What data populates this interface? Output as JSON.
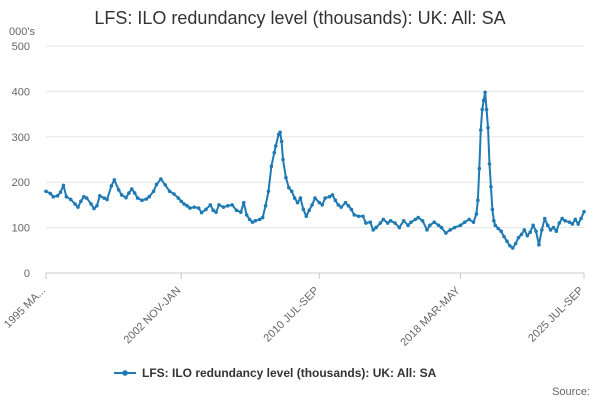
{
  "chart_data": {
    "type": "line",
    "title": "LFS: ILO redundancy level (thousands): UK: All: SA",
    "ylabel": "000's",
    "xlabel": "",
    "ylim": [
      0,
      500
    ],
    "yticks": [
      0,
      100,
      200,
      300,
      400,
      500
    ],
    "grid": true,
    "legend_position": "bottom",
    "source_label": "Source:",
    "xtick_labels": [
      "1995 MA...",
      "2002 NOV-JAN",
      "2010 JUL-SEP",
      "2018 MAR-MAY",
      "2025 JUL-SEP"
    ],
    "xtick_positions": [
      0,
      93,
      188,
      285,
      370
    ],
    "series": [
      {
        "name": "LFS: ILO redundancy level (thousands): UK: All: SA",
        "color": "#1f7ab4",
        "anchors": [
          [
            0,
            180
          ],
          [
            3,
            175
          ],
          [
            5,
            168
          ],
          [
            8,
            170
          ],
          [
            10,
            178
          ],
          [
            12,
            193
          ],
          [
            14,
            168
          ],
          [
            17,
            162
          ],
          [
            20,
            152
          ],
          [
            22,
            145
          ],
          [
            24,
            158
          ],
          [
            26,
            168
          ],
          [
            28,
            165
          ],
          [
            31,
            152
          ],
          [
            33,
            142
          ],
          [
            35,
            148
          ],
          [
            37,
            170
          ],
          [
            40,
            165
          ],
          [
            42,
            162
          ],
          [
            45,
            192
          ],
          [
            47,
            205
          ],
          [
            50,
            183
          ],
          [
            52,
            172
          ],
          [
            55,
            166
          ],
          [
            57,
            176
          ],
          [
            59,
            185
          ],
          [
            61,
            176
          ],
          [
            63,
            165
          ],
          [
            66,
            160
          ],
          [
            69,
            163
          ],
          [
            71,
            168
          ],
          [
            74,
            180
          ],
          [
            76,
            195
          ],
          [
            79,
            207
          ],
          [
            82,
            194
          ],
          [
            85,
            180
          ],
          [
            88,
            174
          ],
          [
            91,
            165
          ],
          [
            93,
            158
          ],
          [
            95,
            152
          ],
          [
            97,
            148
          ],
          [
            99,
            143
          ],
          [
            102,
            145
          ],
          [
            105,
            143
          ],
          [
            107,
            133
          ],
          [
            110,
            140
          ],
          [
            113,
            150
          ],
          [
            115,
            138
          ],
          [
            117,
            134
          ],
          [
            119,
            150
          ],
          [
            122,
            145
          ],
          [
            125,
            148
          ],
          [
            128,
            150
          ],
          [
            131,
            138
          ],
          [
            134,
            134
          ],
          [
            136,
            155
          ],
          [
            138,
            128
          ],
          [
            140,
            118
          ],
          [
            142,
            112
          ],
          [
            144,
            115
          ],
          [
            147,
            118
          ],
          [
            149,
            122
          ],
          [
            151,
            148
          ],
          [
            153,
            180
          ],
          [
            155,
            235
          ],
          [
            157,
            265
          ],
          [
            158,
            280
          ],
          [
            160,
            305
          ],
          [
            161,
            310
          ],
          [
            162,
            290
          ],
          [
            163,
            250
          ],
          [
            165,
            210
          ],
          [
            167,
            188
          ],
          [
            169,
            180
          ],
          [
            171,
            165
          ],
          [
            173,
            155
          ],
          [
            175,
            165
          ],
          [
            177,
            140
          ],
          [
            179,
            125
          ],
          [
            181,
            138
          ],
          [
            183,
            150
          ],
          [
            185,
            165
          ],
          [
            188,
            155
          ],
          [
            190,
            150
          ],
          [
            192,
            165
          ],
          [
            195,
            168
          ],
          [
            197,
            172
          ],
          [
            199,
            160
          ],
          [
            201,
            150
          ],
          [
            203,
            145
          ],
          [
            206,
            155
          ],
          [
            208,
            148
          ],
          [
            210,
            140
          ],
          [
            212,
            128
          ],
          [
            215,
            125
          ],
          [
            218,
            125
          ],
          [
            220,
            110
          ],
          [
            223,
            112
          ],
          [
            225,
            95
          ],
          [
            227,
            100
          ],
          [
            230,
            110
          ],
          [
            232,
            118
          ],
          [
            235,
            110
          ],
          [
            237,
            115
          ],
          [
            240,
            110
          ],
          [
            243,
            100
          ],
          [
            246,
            115
          ],
          [
            249,
            105
          ],
          [
            251,
            112
          ],
          [
            254,
            118
          ],
          [
            256,
            122
          ],
          [
            259,
            115
          ],
          [
            262,
            95
          ],
          [
            264,
            105
          ],
          [
            267,
            112
          ],
          [
            270,
            105
          ],
          [
            272,
            100
          ],
          [
            275,
            88
          ],
          [
            278,
            95
          ],
          [
            281,
            100
          ],
          [
            285,
            105
          ],
          [
            288,
            112
          ],
          [
            291,
            118
          ],
          [
            294,
            112
          ],
          [
            296,
            130
          ],
          [
            297,
            160
          ],
          [
            298,
            230
          ],
          [
            299,
            315
          ],
          [
            300,
            360
          ],
          [
            301,
            380
          ],
          [
            302,
            398
          ],
          [
            303,
            360
          ],
          [
            304,
            320
          ],
          [
            305,
            240
          ],
          [
            306,
            190
          ],
          [
            307,
            140
          ],
          [
            308,
            115
          ],
          [
            309,
            105
          ],
          [
            311,
            98
          ],
          [
            313,
            92
          ],
          [
            315,
            80
          ],
          [
            317,
            70
          ],
          [
            319,
            60
          ],
          [
            321,
            55
          ],
          [
            323,
            65
          ],
          [
            325,
            78
          ],
          [
            327,
            85
          ],
          [
            329,
            95
          ],
          [
            331,
            82
          ],
          [
            333,
            90
          ],
          [
            335,
            105
          ],
          [
            337,
            92
          ],
          [
            339,
            62
          ],
          [
            341,
            95
          ],
          [
            343,
            120
          ],
          [
            345,
            105
          ],
          [
            347,
            95
          ],
          [
            349,
            100
          ],
          [
            351,
            92
          ],
          [
            353,
            110
          ],
          [
            355,
            120
          ],
          [
            357,
            115
          ],
          [
            360,
            112
          ],
          [
            362,
            108
          ],
          [
            364,
            118
          ],
          [
            366,
            108
          ],
          [
            368,
            120
          ],
          [
            370,
            135
          ]
        ]
      }
    ]
  }
}
